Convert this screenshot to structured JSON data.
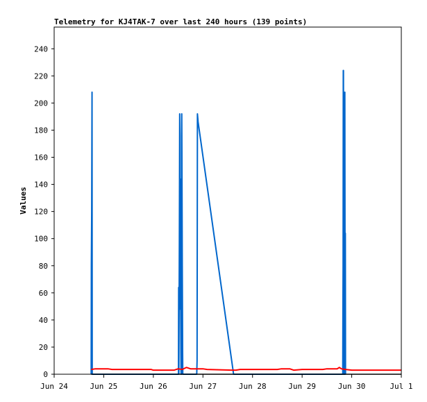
{
  "chart_data": {
    "type": "line",
    "title": "Telemetry for KJ4TAK-7 over last 240 hours (139 points)",
    "ylabel": "Values",
    "xlabel": "",
    "ylim": [
      0,
      256
    ],
    "y_ticks": [
      0,
      20,
      40,
      60,
      80,
      100,
      120,
      140,
      160,
      180,
      200,
      220,
      240
    ],
    "x_range": [
      "2024-06-24",
      "2024-07-01"
    ],
    "x_tick_labels": [
      "Jun 24",
      "Jun 25",
      "Jun 26",
      "Jun 27",
      "Jun 28",
      "Jun 29",
      "Jun 30",
      "Jul 1"
    ],
    "grid": false,
    "legend": "none",
    "series": [
      {
        "color": "#0066cc",
        "points": [
          [
            "2024-06-24 17:55",
            0
          ],
          [
            "2024-06-24 18:00",
            80
          ],
          [
            "2024-06-24 18:10",
            120
          ],
          [
            "2024-06-24 18:20",
            208
          ],
          [
            "2024-06-24 18:25",
            0
          ],
          [
            "2024-06-26 12:10",
            0
          ],
          [
            "2024-06-26 12:15",
            64
          ],
          [
            "2024-06-26 12:20",
            0
          ],
          [
            "2024-06-26 12:25",
            32
          ],
          [
            "2024-06-26 12:35",
            96
          ],
          [
            "2024-06-26 12:45",
            192
          ],
          [
            "2024-06-26 12:50",
            176
          ],
          [
            "2024-06-26 12:55",
            48
          ],
          [
            "2024-06-26 13:00",
            144
          ],
          [
            "2024-06-26 13:05",
            112
          ],
          [
            "2024-06-26 13:10",
            80
          ],
          [
            "2024-06-26 13:15",
            48
          ],
          [
            "2024-06-26 13:20",
            16
          ],
          [
            "2024-06-26 13:25",
            0
          ],
          [
            "2024-06-26 13:35",
            0
          ],
          [
            "2024-06-26 13:40",
            176
          ],
          [
            "2024-06-26 13:45",
            192
          ],
          [
            "2024-06-26 13:50",
            160
          ],
          [
            "2024-06-26 13:55",
            120
          ],
          [
            "2024-06-26 14:00",
            80
          ],
          [
            "2024-06-26 14:10",
            16
          ],
          [
            "2024-06-26 14:15",
            0
          ],
          [
            "2024-06-26 14:30",
            0
          ],
          [
            "2024-06-26 21:00",
            0
          ],
          [
            "2024-06-26 21:10",
            10
          ],
          [
            "2024-06-26 21:20",
            192
          ],
          [
            "2024-06-26 21:40",
            186
          ],
          [
            "2024-06-27 14:50",
            0
          ],
          [
            "2024-06-29 19:40",
            0
          ],
          [
            "2024-06-29 19:45",
            48
          ],
          [
            "2024-06-29 19:50",
            80
          ],
          [
            "2024-06-29 19:55",
            224
          ],
          [
            "2024-06-29 20:00",
            224
          ],
          [
            "2024-06-29 20:05",
            112
          ],
          [
            "2024-06-29 20:10",
            0
          ],
          [
            "2024-06-29 20:15",
            112
          ],
          [
            "2024-06-29 20:20",
            192
          ],
          [
            "2024-06-29 20:25",
            80
          ],
          [
            "2024-06-29 20:30",
            0
          ],
          [
            "2024-06-29 20:35",
            104
          ],
          [
            "2024-06-29 20:40",
            208
          ],
          [
            "2024-06-29 20:45",
            104
          ],
          [
            "2024-06-29 20:50",
            0
          ],
          [
            "2024-06-29 20:55",
            104
          ],
          [
            "2024-06-29 21:00",
            0
          ]
        ]
      },
      {
        "color": "#ff0000",
        "points": [
          [
            "2024-06-24 17:55",
            3.5
          ],
          [
            "2024-06-24 20:00",
            4
          ],
          [
            "2024-06-25 02:00",
            4
          ],
          [
            "2024-06-25 04:00",
            3.5
          ],
          [
            "2024-06-25 23:00",
            3.5
          ],
          [
            "2024-06-26 00:00",
            3
          ],
          [
            "2024-06-26 10:00",
            3
          ],
          [
            "2024-06-26 12:00",
            4
          ],
          [
            "2024-06-26 14:00",
            3.5
          ],
          [
            "2024-06-26 16:00",
            5
          ],
          [
            "2024-06-26 18:00",
            4
          ],
          [
            "2024-06-27 00:00",
            4
          ],
          [
            "2024-06-27 02:00",
            3.5
          ],
          [
            "2024-06-27 14:00",
            3
          ],
          [
            "2024-06-27 16:00",
            3
          ],
          [
            "2024-06-27 18:00",
            3.5
          ],
          [
            "2024-06-28 12:00",
            3.5
          ],
          [
            "2024-06-28 14:00",
            4
          ],
          [
            "2024-06-28 18:00",
            4
          ],
          [
            "2024-06-28 20:00",
            3
          ],
          [
            "2024-06-29 00:00",
            3.5
          ],
          [
            "2024-06-29 10:00",
            3.5
          ],
          [
            "2024-06-29 12:00",
            4
          ],
          [
            "2024-06-29 17:00",
            4
          ],
          [
            "2024-06-29 18:00",
            5
          ],
          [
            "2024-06-29 19:00",
            4
          ],
          [
            "2024-06-29 21:00",
            3.5
          ],
          [
            "2024-06-30 00:00",
            3
          ],
          [
            "2024-07-01 00:00",
            3
          ]
        ]
      },
      {
        "color": "#000000",
        "points": [
          [
            "2024-06-24 17:55",
            0
          ],
          [
            "2024-07-01 00:00",
            0
          ]
        ]
      }
    ]
  }
}
